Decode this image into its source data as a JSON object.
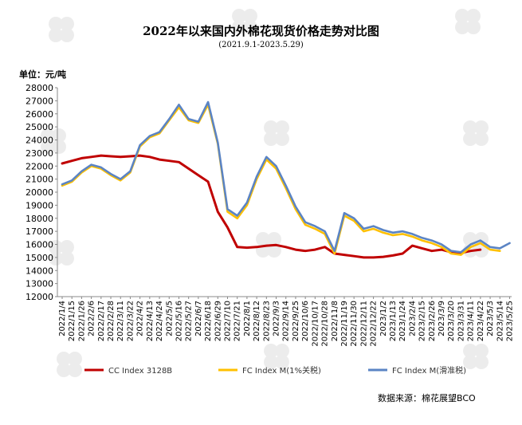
{
  "chart_data": {
    "type": "line",
    "title": "2022年以来国内外棉花现货价格走势对比图",
    "subtitle": "(2021.9.1-2023.5.29)",
    "ylabel": "单位：元/吨",
    "source": "数据来源：棉花展望BCO",
    "ylim": [
      12000,
      28000
    ],
    "yticks": [
      12000,
      13000,
      14000,
      15000,
      16000,
      17000,
      18000,
      19000,
      20000,
      21000,
      22000,
      23000,
      24000,
      25000,
      26000,
      27000,
      28000
    ],
    "x_ticks": [
      "2022/1/4",
      "2022/1/15",
      "2022/1/26",
      "2022/2/6",
      "2022/2/17",
      "2022/2/28",
      "2022/3/11",
      "2022/3/22",
      "2022/4/2",
      "2022/4/13",
      "2022/4/24",
      "2022/5/5",
      "2022/5/16",
      "2022/5/27",
      "2022/6/7",
      "2022/6/18",
      "2022/6/29",
      "2022/7/10",
      "2022/7/21",
      "2022/8/1",
      "2022/8/12",
      "2022/8/23",
      "2022/9/3",
      "2022/9/14",
      "2022/9/25",
      "2022/10/6",
      "2022/10/17",
      "2022/10/28",
      "2022/11/8",
      "2022/11/19",
      "2022/11/30",
      "2022/12/11",
      "2022/12/22",
      "2023/1/2",
      "2023/1/13",
      "2023/1/24",
      "2023/2/4",
      "2023/2/15",
      "2023/2/26",
      "2023/3/9",
      "2023/3/20",
      "2023/3/31",
      "2023/4/11",
      "2023/4/22",
      "2023/5/3",
      "2023/5/14",
      "2023/5/25"
    ],
    "legend_placement": "bottom",
    "series": [
      {
        "name": "CC Index 3128B",
        "color": "#c00000",
        "points": [
          [
            "2022/1/4",
            22200
          ],
          [
            "2022/1/15",
            22400
          ],
          [
            "2022/1/26",
            22600
          ],
          [
            "2022/2/6",
            22700
          ],
          [
            "2022/2/17",
            22800
          ],
          [
            "2022/2/28",
            22750
          ],
          [
            "2022/3/11",
            22700
          ],
          [
            "2022/3/22",
            22750
          ],
          [
            "2022/4/2",
            22800
          ],
          [
            "2022/4/13",
            22700
          ],
          [
            "2022/4/24",
            22500
          ],
          [
            "2022/5/5",
            22400
          ],
          [
            "2022/5/16",
            22300
          ],
          [
            "2022/5/27",
            21800
          ],
          [
            "2022/6/7",
            21300
          ],
          [
            "2022/6/18",
            20800
          ],
          [
            "2022/6/29",
            18500
          ],
          [
            "2022/7/10",
            17300
          ],
          [
            "2022/7/21",
            15800
          ],
          [
            "2022/8/1",
            15750
          ],
          [
            "2022/8/12",
            15800
          ],
          [
            "2022/8/23",
            15900
          ],
          [
            "2022/9/3",
            15950
          ],
          [
            "2022/9/14",
            15800
          ],
          [
            "2022/9/25",
            15600
          ],
          [
            "2022/10/6",
            15500
          ],
          [
            "2022/10/17",
            15600
          ],
          [
            "2022/10/28",
            15800
          ],
          [
            "2022/11/8",
            15300
          ],
          [
            "2022/11/19",
            15200
          ],
          [
            "2022/11/30",
            15100
          ],
          [
            "2022/12/11",
            15000
          ],
          [
            "2022/12/22",
            15000
          ],
          [
            "2023/1/2",
            15050
          ],
          [
            "2023/1/13",
            15150
          ],
          [
            "2023/1/24",
            15300
          ],
          [
            "2023/2/4",
            15900
          ],
          [
            "2023/2/15",
            15700
          ],
          [
            "2023/2/26",
            15500
          ],
          [
            "2023/3/9",
            15600
          ],
          [
            "2023/3/20",
            15400
          ],
          [
            "2023/3/31",
            15350
          ],
          [
            "2023/4/11",
            15500
          ],
          [
            "2023/4/22",
            15600
          ]
        ]
      },
      {
        "name": "FC Index M(1%关税)",
        "color": "#ffc000",
        "points": [
          [
            "2022/1/4",
            20500
          ],
          [
            "2022/1/15",
            20800
          ],
          [
            "2022/1/26",
            21500
          ],
          [
            "2022/2/6",
            22000
          ],
          [
            "2022/2/17",
            21800
          ],
          [
            "2022/2/28",
            21300
          ],
          [
            "2022/3/11",
            20900
          ],
          [
            "2022/3/22",
            21500
          ],
          [
            "2022/4/2",
            23500
          ],
          [
            "2022/4/13",
            24200
          ],
          [
            "2022/4/24",
            24500
          ],
          [
            "2022/5/5",
            25500
          ],
          [
            "2022/5/16",
            26500
          ],
          [
            "2022/5/27",
            25500
          ],
          [
            "2022/6/7",
            25300
          ],
          [
            "2022/6/18",
            26700
          ],
          [
            "2022/6/29",
            23700
          ],
          [
            "2022/7/10",
            18500
          ],
          [
            "2022/7/21",
            18000
          ],
          [
            "2022/8/1",
            19000
          ],
          [
            "2022/8/12",
            21000
          ],
          [
            "2022/8/23",
            22500
          ],
          [
            "2022/9/3",
            21800
          ],
          [
            "2022/9/14",
            20300
          ],
          [
            "2022/9/25",
            18700
          ],
          [
            "2022/10/6",
            17500
          ],
          [
            "2022/10/17",
            17200
          ],
          [
            "2022/10/28",
            16800
          ],
          [
            "2022/11/8",
            15300
          ],
          [
            "2022/11/19",
            18200
          ],
          [
            "2022/11/30",
            17800
          ],
          [
            "2022/12/11",
            17000
          ],
          [
            "2022/12/22",
            17200
          ],
          [
            "2023/1/2",
            16900
          ],
          [
            "2023/1/13",
            16700
          ],
          [
            "2023/1/24",
            16800
          ],
          [
            "2023/2/4",
            16600
          ],
          [
            "2023/2/15",
            16300
          ],
          [
            "2023/2/26",
            16100
          ],
          [
            "2023/3/9",
            15800
          ],
          [
            "2023/3/20",
            15300
          ],
          [
            "2023/3/31",
            15200
          ],
          [
            "2023/4/11",
            15800
          ],
          [
            "2023/4/22",
            16100
          ],
          [
            "2023/5/3",
            15600
          ],
          [
            "2023/5/14",
            15500
          ]
        ]
      },
      {
        "name": "FC Index M(滑准税)",
        "color": "#5b84c4",
        "points": [
          [
            "2022/1/4",
            20600
          ],
          [
            "2022/1/15",
            20900
          ],
          [
            "2022/1/26",
            21600
          ],
          [
            "2022/2/6",
            22100
          ],
          [
            "2022/2/17",
            21900
          ],
          [
            "2022/2/28",
            21400
          ],
          [
            "2022/3/11",
            21000
          ],
          [
            "2022/3/22",
            21600
          ],
          [
            "2022/4/2",
            23600
          ],
          [
            "2022/4/13",
            24300
          ],
          [
            "2022/4/24",
            24600
          ],
          [
            "2022/5/5",
            25600
          ],
          [
            "2022/5/16",
            26700
          ],
          [
            "2022/5/27",
            25600
          ],
          [
            "2022/6/7",
            25400
          ],
          [
            "2022/6/18",
            26900
          ],
          [
            "2022/6/29",
            23800
          ],
          [
            "2022/7/10",
            18700
          ],
          [
            "2022/7/21",
            18200
          ],
          [
            "2022/8/1",
            19200
          ],
          [
            "2022/8/12",
            21200
          ],
          [
            "2022/8/23",
            22700
          ],
          [
            "2022/9/3",
            22000
          ],
          [
            "2022/9/14",
            20500
          ],
          [
            "2022/9/25",
            18900
          ],
          [
            "2022/10/6",
            17700
          ],
          [
            "2022/10/17",
            17400
          ],
          [
            "2022/10/28",
            17000
          ],
          [
            "2022/11/8",
            15500
          ],
          [
            "2022/11/19",
            18400
          ],
          [
            "2022/11/30",
            18000
          ],
          [
            "2022/12/11",
            17200
          ],
          [
            "2022/12/22",
            17400
          ],
          [
            "2023/1/2",
            17100
          ],
          [
            "2023/1/13",
            16900
          ],
          [
            "2023/1/24",
            17000
          ],
          [
            "2023/2/4",
            16800
          ],
          [
            "2023/2/15",
            16500
          ],
          [
            "2023/2/26",
            16300
          ],
          [
            "2023/3/9",
            16000
          ],
          [
            "2023/3/20",
            15500
          ],
          [
            "2023/3/31",
            15400
          ],
          [
            "2023/4/11",
            16000
          ],
          [
            "2023/4/22",
            16300
          ],
          [
            "2023/5/3",
            15800
          ],
          [
            "2023/5/14",
            15700
          ],
          [
            "2023/5/25",
            16100
          ]
        ]
      }
    ]
  }
}
